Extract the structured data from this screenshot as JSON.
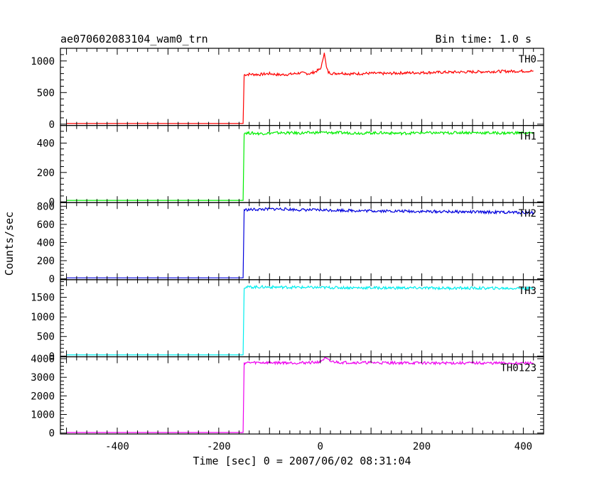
{
  "chart_data": {
    "type": "line",
    "title": "ae070602083104_wam0_trn",
    "bin_time": "Bin time: 1.0 s",
    "xlabel": "Time [sec] 0 = 2007/06/02 08:31:04",
    "ylabel": "Counts/sec",
    "xlim": [
      -512,
      440
    ],
    "xticks": [
      -400,
      -200,
      0,
      200,
      400
    ],
    "grid": false,
    "panels": [
      {
        "name": "TH0",
        "color": "#ff0000",
        "ylim": [
          -20,
          1200
        ],
        "yticks": [
          0,
          500,
          1000
        ],
        "series": [
          {
            "x": [
              -500,
              -152,
              -150,
              -140,
              -120,
              -100,
              -80,
              -60,
              -40,
              -20,
              -10,
              0,
              5,
              8,
              12,
              16,
              25,
              40,
              60,
              80,
              100,
              130,
              160,
              200,
              240,
              280,
              320,
              360,
              400,
              420
            ],
            "y": [
              10,
              10,
              780,
              790,
              785,
              800,
              780,
              790,
              810,
              800,
              830,
              870,
              1000,
              1150,
              900,
              820,
              800,
              810,
              795,
              800,
              805,
              800,
              810,
              815,
              820,
              825,
              830,
              835,
              840,
              840
            ]
          }
        ]
      },
      {
        "name": "TH1",
        "color": "#00ee00",
        "ylim": [
          -5,
          520
        ],
        "yticks": [
          0,
          200,
          400
        ],
        "series": [
          {
            "x": [
              -500,
              -152,
              -150,
              -120,
              -80,
              -40,
              0,
              40,
              80,
              120,
              160,
              200,
              240,
              280,
              320,
              360,
              400,
              420
            ],
            "y": [
              10,
              10,
              470,
              465,
              470,
              468,
              472,
              470,
              468,
              470,
              466,
              470,
              468,
              472,
              470,
              468,
              470,
              468
            ]
          }
        ]
      },
      {
        "name": "TH2",
        "color": "#0000dd",
        "ylim": [
          -10,
          840
        ],
        "yticks": [
          0,
          200,
          400,
          600,
          800
        ],
        "series": [
          {
            "x": [
              -500,
              -152,
              -150,
              -120,
              -80,
              -40,
              0,
              40,
              80,
              120,
              160,
              200,
              240,
              280,
              320,
              360,
              400,
              420
            ],
            "y": [
              10,
              10,
              760,
              765,
              770,
              760,
              758,
              755,
              750,
              748,
              745,
              742,
              740,
              738,
              735,
              733,
              730,
              730
            ]
          }
        ]
      },
      {
        "name": "TH3",
        "color": "#00eeee",
        "ylim": [
          -20,
          1950
        ],
        "yticks": [
          0,
          500,
          1000,
          1500
        ],
        "series": [
          {
            "x": [
              -500,
              -152,
              -150,
              -120,
              -80,
              -40,
              0,
              40,
              80,
              120,
              160,
              200,
              240,
              280,
              320,
              360,
              400,
              420
            ],
            "y": [
              30,
              30,
              1760,
              1765,
              1760,
              1755,
              1750,
              1748,
              1745,
              1742,
              1740,
              1738,
              1736,
              1735,
              1733,
              1732,
              1730,
              1730
            ]
          }
        ]
      },
      {
        "name": "TH0123",
        "color": "#ee00ee",
        "ylim": [
          -50,
          4100
        ],
        "yticks": [
          0,
          1000,
          2000,
          3000,
          4000
        ],
        "series": [
          {
            "x": [
              -500,
              -152,
              -150,
              -120,
              -80,
              -40,
              -10,
              0,
              5,
              10,
              20,
              40,
              80,
              120,
              160,
              200,
              240,
              280,
              320,
              360,
              400,
              420
            ],
            "y": [
              30,
              30,
              3780,
              3790,
              3785,
              3780,
              3800,
              3850,
              3950,
              4020,
              3850,
              3800,
              3790,
              3780,
              3775,
              3770,
              3768,
              3765,
              3763,
              3760,
              3760,
              3760
            ]
          }
        ]
      }
    ]
  }
}
